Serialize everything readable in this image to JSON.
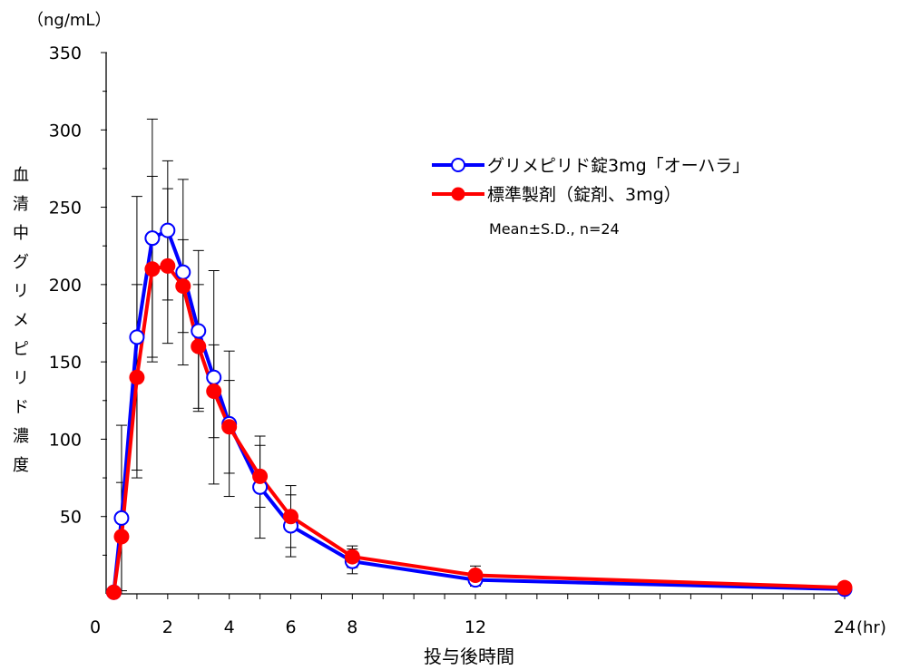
{
  "chart_data": {
    "type": "line",
    "y_unit": "（ng/mL）",
    "ylabel": "血清中グリメピリド濃度",
    "xlabel": "投与後時間",
    "x_unit": "(hr)",
    "annotation": "Mean±S.D., n=24",
    "xlim": [
      0,
      24
    ],
    "ylim": [
      0,
      350
    ],
    "x_ticks": [
      0,
      2,
      4,
      6,
      8,
      12,
      24
    ],
    "y_ticks": [
      50,
      100,
      150,
      200,
      250,
      300,
      350
    ],
    "legend_position": "top-right",
    "series": [
      {
        "name": "グリメピリド錠3mg「オーハラ」",
        "color": "#0000ff",
        "marker": "open-circle",
        "x": [
          0.25,
          0.5,
          1.0,
          1.5,
          2.0,
          2.5,
          3.0,
          3.5,
          4.0,
          5.0,
          6.0,
          8.0,
          12.0,
          24.0
        ],
        "y": [
          1,
          49,
          166,
          230,
          235,
          208,
          170,
          140,
          110,
          69,
          44,
          21,
          9,
          3
        ],
        "sd": [
          0,
          60,
          91,
          77,
          45,
          60,
          52,
          69,
          47,
          33,
          20,
          8,
          4,
          0
        ]
      },
      {
        "name": "標準製剤（錠剤、3mg）",
        "color": "#ff0000",
        "marker": "filled-circle",
        "x": [
          0.25,
          0.5,
          1.0,
          1.5,
          2.0,
          2.5,
          3.0,
          3.5,
          4.0,
          5.0,
          6.0,
          8.0,
          12.0,
          24.0
        ],
        "y": [
          1,
          37,
          140,
          210,
          212,
          199,
          160,
          131,
          108,
          76,
          50,
          24,
          12,
          4
        ],
        "sd": [
          0,
          35,
          60,
          60,
          50,
          30,
          40,
          30,
          30,
          20,
          20,
          7,
          6,
          0
        ]
      }
    ]
  }
}
